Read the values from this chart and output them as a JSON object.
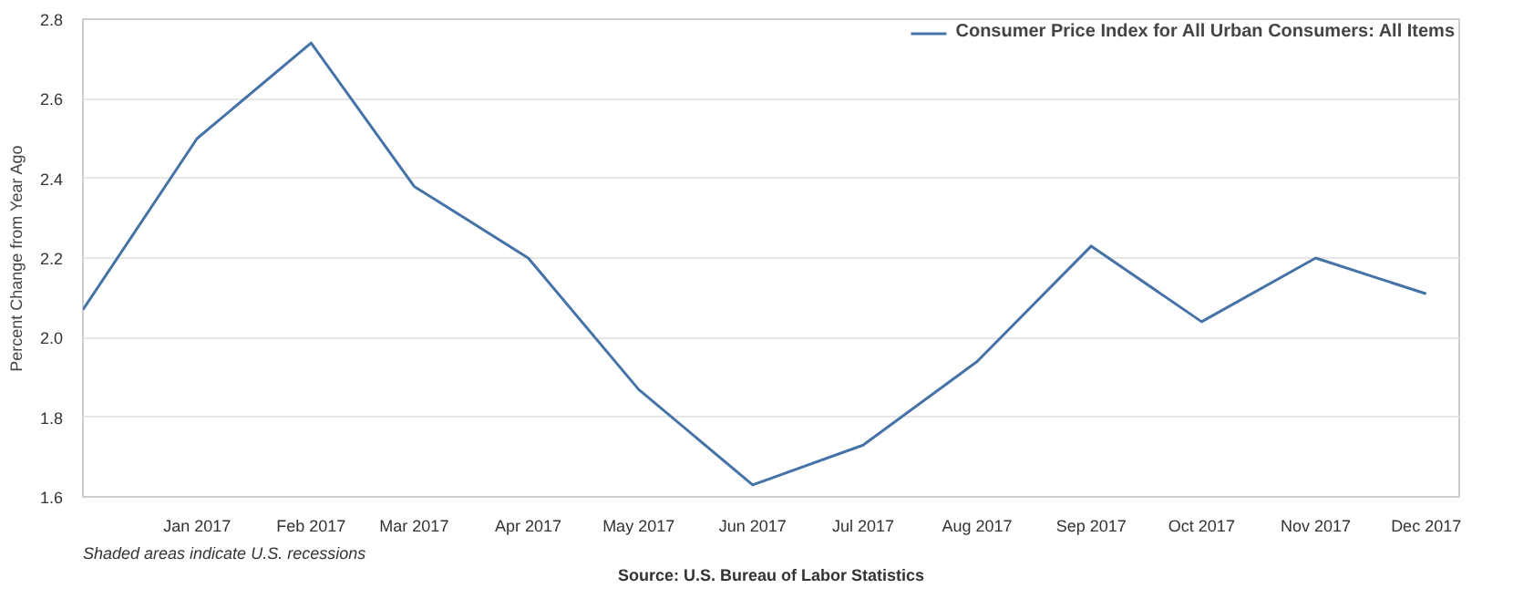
{
  "chart_data": {
    "type": "line",
    "ylabel": "Percent Change from Year Ago",
    "x": [
      "2016-12",
      "2017-01",
      "2017-02",
      "2017-03",
      "2017-04",
      "2017-05",
      "2017-06",
      "2017-07",
      "2017-08",
      "2017-09",
      "2017-10",
      "2017-11",
      "2017-12"
    ],
    "series": [
      {
        "name": "Consumer Price Index for All Urban Consumers: All Items",
        "color": "#4572a7",
        "values": [
          2.07,
          2.5,
          2.74,
          2.38,
          2.2,
          1.87,
          1.63,
          1.73,
          1.94,
          2.23,
          2.04,
          2.2,
          2.11
        ]
      }
    ],
    "xlim": [
      "2016-12",
      "2017-12-10"
    ],
    "xticks": [
      {
        "value": "2017-01",
        "label": "Jan 2017"
      },
      {
        "value": "2017-02",
        "label": "Feb 2017"
      },
      {
        "value": "2017-03",
        "label": "Mar 2017"
      },
      {
        "value": "2017-04",
        "label": "Apr 2017"
      },
      {
        "value": "2017-05",
        "label": "May 2017"
      },
      {
        "value": "2017-06",
        "label": "Jun 2017"
      },
      {
        "value": "2017-07",
        "label": "Jul 2017"
      },
      {
        "value": "2017-08",
        "label": "Aug 2017"
      },
      {
        "value": "2017-09",
        "label": "Sep 2017"
      },
      {
        "value": "2017-10",
        "label": "Oct 2017"
      },
      {
        "value": "2017-11",
        "label": "Nov 2017"
      },
      {
        "value": "2017-12",
        "label": "Dec 2017"
      }
    ],
    "ylim": [
      1.6,
      2.8
    ],
    "yticks": [
      1.6,
      1.8,
      {
        "value": 2,
        "label": "2.0"
      },
      2.2,
      2.4,
      2.6,
      2.8
    ],
    "grid": "y",
    "legend": "top right",
    "marker": "none",
    "line_style": "solid",
    "annotations": [
      "Shaded areas indicate U.S. recessions",
      "Source: U.S. Bureau of Labor Statistics"
    ]
  }
}
